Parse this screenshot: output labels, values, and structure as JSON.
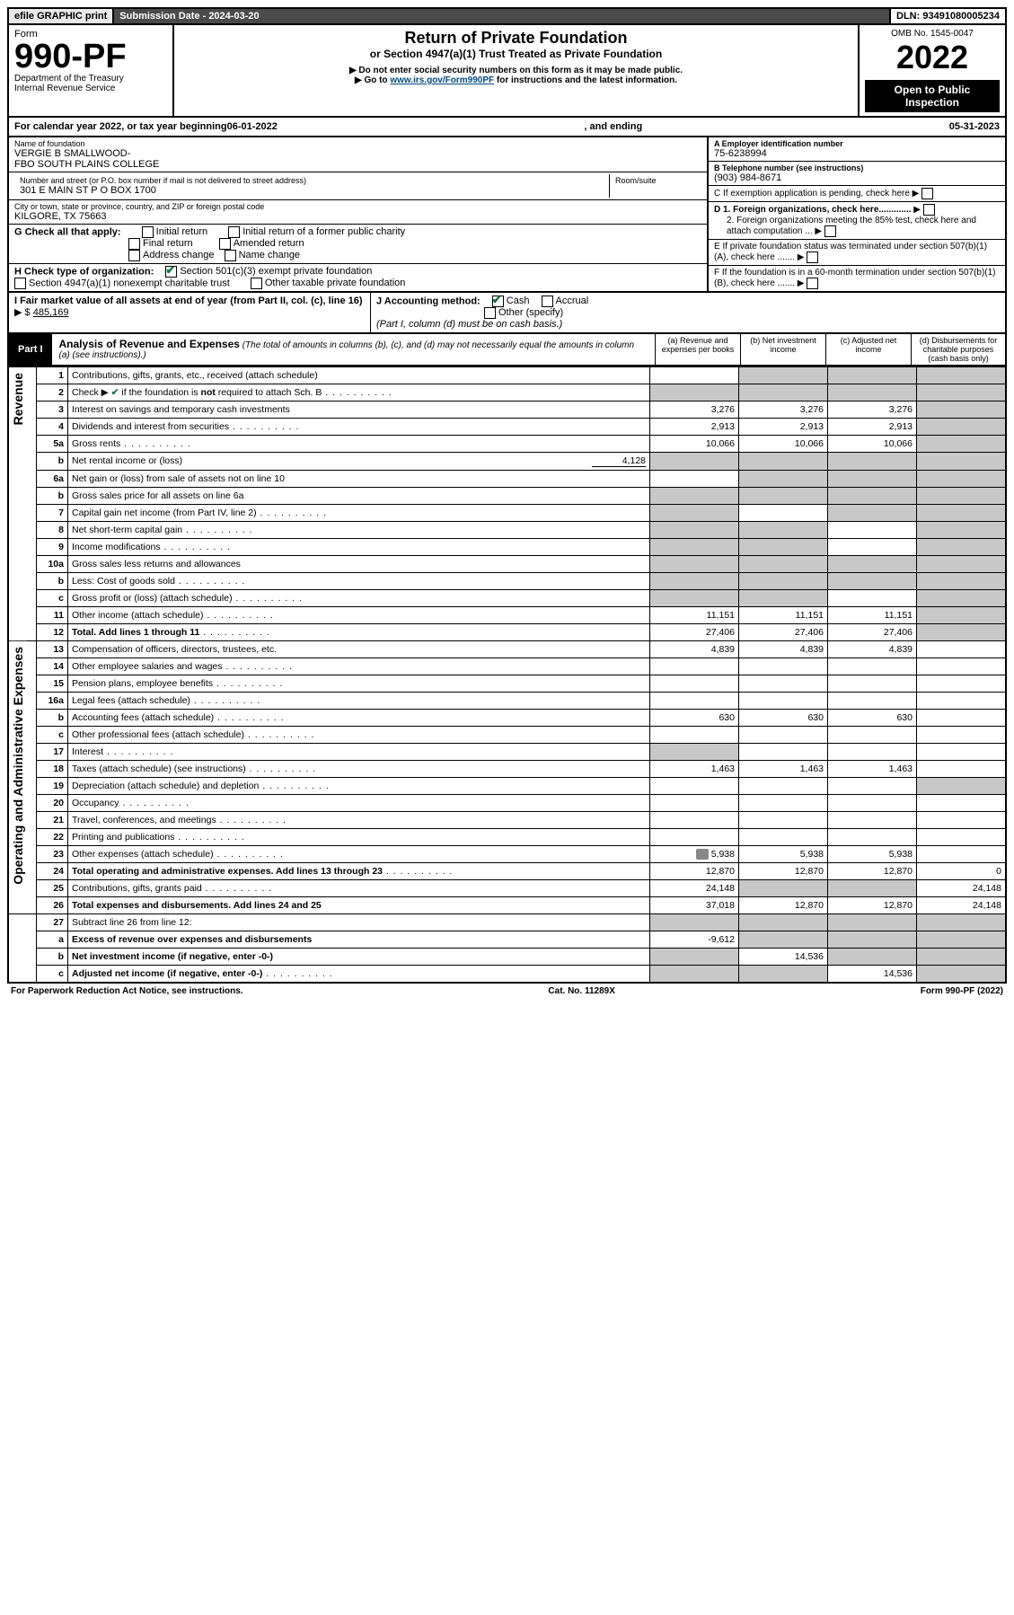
{
  "topbar": {
    "efile": "efile GRAPHIC print",
    "subdate": "Submission Date - 2024-03-20",
    "dln": "DLN: 93491080005234"
  },
  "header": {
    "form_label": "Form",
    "form_no": "990-PF",
    "dept": "Department of the Treasury",
    "irs": "Internal Revenue Service",
    "title1": "Return of Private Foundation",
    "title2": "or Section 4947(a)(1) Trust Treated as Private Foundation",
    "note1": "▶ Do not enter social security numbers on this form as it may be made public.",
    "note2_prefix": "▶ Go to ",
    "note2_link": "www.irs.gov/Form990PF",
    "note2_suffix": " for instructions and the latest information.",
    "omb": "OMB No. 1545-0047",
    "year": "2022",
    "open": "Open to Public Inspection"
  },
  "calendar": {
    "text_a": "For calendar year 2022, or tax year beginning ",
    "begin": "06-01-2022",
    "text_b": ", and ending ",
    "end": "05-31-2023"
  },
  "entity": {
    "name_lbl": "Name of foundation",
    "name1": "VERGIE B SMALLWOOD-",
    "name2": "FBO SOUTH PLAINS COLLEGE",
    "addr_lbl": "Number and street (or P.O. box number if mail is not delivered to street address)",
    "room_lbl": "Room/suite",
    "addr": "301 E MAIN ST P O BOX 1700",
    "city_lbl": "City or town, state or province, country, and ZIP or foreign postal code",
    "city": "KILGORE, TX  75663",
    "ein_lbl": "A Employer identification number",
    "ein": "75-6238994",
    "phone_lbl": "B Telephone number (see instructions)",
    "phone": "(903) 984-8671",
    "c_lbl": "C If exemption application is pending, check here",
    "d1_lbl": "D 1. Foreign organizations, check here.............",
    "d2_lbl": "2. Foreign organizations meeting the 85% test, check here and attach computation ...",
    "e_lbl": "E  If private foundation status was terminated under section 507(b)(1)(A), check here .......",
    "f_lbl": "F  If the foundation is in a 60-month termination under section 507(b)(1)(B), check here ......."
  },
  "boxG": {
    "label": "G Check all that apply:",
    "o1": "Initial return",
    "o2": "Final return",
    "o3": "Address change",
    "o4": "Initial return of a former public charity",
    "o5": "Amended return",
    "o6": "Name change"
  },
  "boxH": {
    "label": "H Check type of organization:",
    "o1": "Section 501(c)(3) exempt private foundation",
    "o2": "Section 4947(a)(1) nonexempt charitable trust",
    "o3": "Other taxable private foundation"
  },
  "boxI": {
    "label": "I Fair market value of all assets at end of year (from Part II, col. (c), line 16)",
    "arrow": "▶ $",
    "value": "485,169"
  },
  "boxJ": {
    "label": "J Accounting method:",
    "o1": "Cash",
    "o2": "Accrual",
    "o3": "Other (specify)",
    "note": "(Part I, column (d) must be on cash basis.)"
  },
  "part1": {
    "tag": "Part I",
    "title": "Analysis of Revenue and Expenses",
    "note": " (The total of amounts in columns (b), (c), and (d) may not necessarily equal the amounts in column (a) (see instructions).)",
    "col_a": "(a)  Revenue and expenses per books",
    "col_b": "(b)  Net investment income",
    "col_c": "(c)  Adjusted net income",
    "col_d": "(d)  Disbursements for charitable purposes (cash basis only)"
  },
  "sideLabels": {
    "rev": "Revenue",
    "exp": "Operating and Administrative Expenses"
  },
  "rows": [
    {
      "n": "1",
      "l": "Contributions, gifts, grants, etc., received (attach schedule)",
      "a": "",
      "b": "shade",
      "c": "shade",
      "d": "shade"
    },
    {
      "n": "2",
      "l": "Check ▶ ✔ if the foundation is not required to attach Sch. B",
      "a": "shade",
      "b": "shade",
      "c": "shade",
      "d": "shade",
      "dots": true
    },
    {
      "n": "3",
      "l": "Interest on savings and temporary cash investments",
      "a": "3,276",
      "b": "3,276",
      "c": "3,276",
      "d": "shade"
    },
    {
      "n": "4",
      "l": "Dividends and interest from securities",
      "a": "2,913",
      "b": "2,913",
      "c": "2,913",
      "d": "shade",
      "dots": true
    },
    {
      "n": "5a",
      "l": "Gross rents",
      "a": "10,066",
      "b": "10,066",
      "c": "10,066",
      "d": "shade",
      "dots": true
    },
    {
      "n": "b",
      "l": "Net rental income or (loss)",
      "extra": "4,128",
      "a": "shade",
      "b": "shade",
      "c": "shade",
      "d": "shade"
    },
    {
      "n": "6a",
      "l": "Net gain or (loss) from sale of assets not on line 10",
      "a": "",
      "b": "shade",
      "c": "shade",
      "d": "shade"
    },
    {
      "n": "b",
      "l": "Gross sales price for all assets on line 6a",
      "a": "shade",
      "b": "shade",
      "c": "shade",
      "d": "shade"
    },
    {
      "n": "7",
      "l": "Capital gain net income (from Part IV, line 2)",
      "a": "shade",
      "b": "",
      "c": "shade",
      "d": "shade",
      "dots": true
    },
    {
      "n": "8",
      "l": "Net short-term capital gain",
      "a": "shade",
      "b": "shade",
      "c": "",
      "d": "shade",
      "dots": true
    },
    {
      "n": "9",
      "l": "Income modifications",
      "a": "shade",
      "b": "shade",
      "c": "",
      "d": "shade",
      "dots": true
    },
    {
      "n": "10a",
      "l": "Gross sales less returns and allowances",
      "a": "shade",
      "b": "shade",
      "c": "shade",
      "d": "shade"
    },
    {
      "n": "b",
      "l": "Less: Cost of goods sold",
      "a": "shade",
      "b": "shade",
      "c": "shade",
      "d": "shade",
      "dots": true
    },
    {
      "n": "c",
      "l": "Gross profit or (loss) (attach schedule)",
      "a": "shade",
      "b": "shade",
      "c": "",
      "d": "shade",
      "dots": true
    },
    {
      "n": "11",
      "l": "Other income (attach schedule)",
      "a": "11,151",
      "b": "11,151",
      "c": "11,151",
      "d": "shade",
      "dots": true
    },
    {
      "n": "12",
      "l": "Total. Add lines 1 through 11",
      "a": "27,406",
      "b": "27,406",
      "c": "27,406",
      "d": "shade",
      "bold": true,
      "dots": true
    },
    {
      "n": "13",
      "l": "Compensation of officers, directors, trustees, etc.",
      "a": "4,839",
      "b": "4,839",
      "c": "4,839",
      "d": ""
    },
    {
      "n": "14",
      "l": "Other employee salaries and wages",
      "a": "",
      "b": "",
      "c": "",
      "d": "",
      "dots": true
    },
    {
      "n": "15",
      "l": "Pension plans, employee benefits",
      "a": "",
      "b": "",
      "c": "",
      "d": "",
      "dots": true
    },
    {
      "n": "16a",
      "l": "Legal fees (attach schedule)",
      "a": "",
      "b": "",
      "c": "",
      "d": "",
      "dots": true
    },
    {
      "n": "b",
      "l": "Accounting fees (attach schedule)",
      "a": "630",
      "b": "630",
      "c": "630",
      "d": "",
      "dots": true
    },
    {
      "n": "c",
      "l": "Other professional fees (attach schedule)",
      "a": "",
      "b": "",
      "c": "",
      "d": "",
      "dots": true
    },
    {
      "n": "17",
      "l": "Interest",
      "a": "shade",
      "b": "",
      "c": "",
      "d": "",
      "dots": true
    },
    {
      "n": "18",
      "l": "Taxes (attach schedule) (see instructions)",
      "a": "1,463",
      "b": "1,463",
      "c": "1,463",
      "d": "",
      "dots": true
    },
    {
      "n": "19",
      "l": "Depreciation (attach schedule) and depletion",
      "a": "",
      "b": "",
      "c": "",
      "d": "shade",
      "dots": true
    },
    {
      "n": "20",
      "l": "Occupancy",
      "a": "",
      "b": "",
      "c": "",
      "d": "",
      "dots": true
    },
    {
      "n": "21",
      "l": "Travel, conferences, and meetings",
      "a": "",
      "b": "",
      "c": "",
      "d": "",
      "dots": true
    },
    {
      "n": "22",
      "l": "Printing and publications",
      "a": "",
      "b": "",
      "c": "",
      "d": "",
      "dots": true
    },
    {
      "n": "23",
      "l": "Other expenses (attach schedule)",
      "a": "5,938",
      "b": "5,938",
      "c": "5,938",
      "d": "",
      "icon": true,
      "dots": true
    },
    {
      "n": "24",
      "l": "Total operating and administrative expenses. Add lines 13 through 23",
      "a": "12,870",
      "b": "12,870",
      "c": "12,870",
      "d": "0",
      "bold": true,
      "dots": true
    },
    {
      "n": "25",
      "l": "Contributions, gifts, grants paid",
      "a": "24,148",
      "b": "shade",
      "c": "shade",
      "d": "24,148",
      "dots": true
    },
    {
      "n": "26",
      "l": "Total expenses and disbursements. Add lines 24 and 25",
      "a": "37,018",
      "b": "12,870",
      "c": "12,870",
      "d": "24,148",
      "bold": true
    },
    {
      "n": "27",
      "l": "Subtract line 26 from line 12:",
      "a": "shade",
      "b": "shade",
      "c": "shade",
      "d": "shade"
    },
    {
      "n": "a",
      "l": "Excess of revenue over expenses and disbursements",
      "a": "-9,612",
      "b": "shade",
      "c": "shade",
      "d": "shade",
      "bold": true
    },
    {
      "n": "b",
      "l": "Net investment income (if negative, enter -0-)",
      "a": "shade",
      "b": "14,536",
      "c": "shade",
      "d": "shade",
      "bold": true
    },
    {
      "n": "c",
      "l": "Adjusted net income (if negative, enter -0-)",
      "a": "shade",
      "b": "shade",
      "c": "14,536",
      "d": "shade",
      "bold": true,
      "dots": true
    }
  ],
  "footer": {
    "left": "For Paperwork Reduction Act Notice, see instructions.",
    "mid": "Cat. No. 11289X",
    "right": "Form 990-PF (2022)"
  }
}
